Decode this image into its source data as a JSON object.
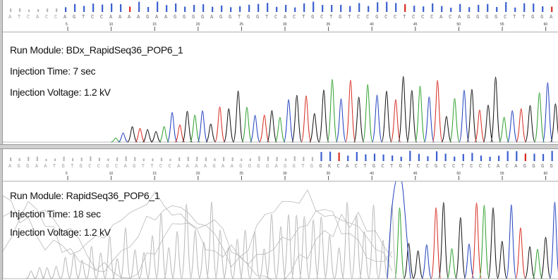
{
  "colors": {
    "A": "#2ca02c",
    "C": "#1f3fbf",
    "G": "#111111",
    "T": "#d62a1f",
    "quality_bar": "#3b5fcf",
    "faded": "#b8b8b8"
  },
  "panel1": {
    "bases": "ATCACCAGTCCAAAAGAAGGGGAGGTGGTCACTGCTGTCCGCCTCCCACAGGGGCTTGGA",
    "ruler_labels": [
      "5",
      "10",
      "15",
      "20",
      "25",
      "30",
      "35",
      "40",
      "45",
      "50",
      "55",
      "60"
    ],
    "run_module": "Run Module: BDx_RapidSeq36_POP6_1",
    "injection_time": "Injection Time:  7 sec",
    "injection_voltage": "Injection Voltage: 1.2 kV"
  },
  "panel2": {
    "bases": "AGGAATGTGCCGCAGTTCCAAAAGAAGGGGAGGTGGKCACTGCTGTCCGCCTCCCACAGGGG",
    "ruler_labels": [
      "5",
      "10",
      "15",
      "20",
      "25",
      "30",
      "35",
      "40",
      "45",
      "50",
      "55",
      "60"
    ],
    "run_module": "Run Module: RapidSeq36_POP6_1",
    "injection_time": "Injection Time:  18 sec",
    "injection_voltage": "Injection Voltage: 1.2 kV"
  }
}
